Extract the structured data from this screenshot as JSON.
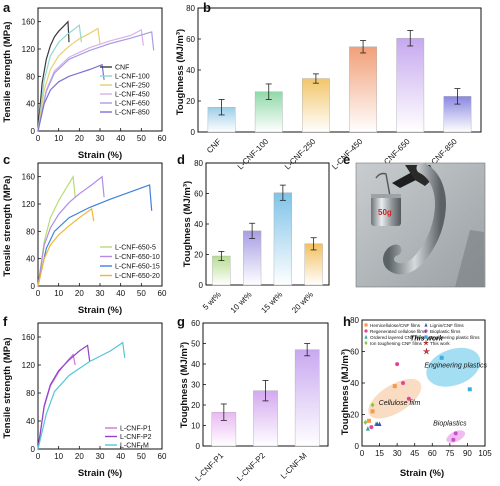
{
  "colors": {
    "pal6": [
      "#3a3a3a",
      "#8fd9d2",
      "#e8d070",
      "#d9b0e8",
      "#a79ee4",
      "#7c72d6"
    ],
    "d": [
      "#b6dd90",
      "#a79ee4",
      "#7fc3e8",
      "#f2c060"
    ],
    "f": [
      "#d873d8",
      "#8e44c9",
      "#55c6d6"
    ],
    "g": [
      "#e8b8f2",
      "#d4a8f0",
      "#c8a8f0"
    ],
    "h_cell": "#f5c090",
    "h_eng": "#58c3e8",
    "h_bio": "#e88ee8",
    "h_star": "#e23b3b"
  },
  "panels": {
    "a": {
      "letter": "a",
      "legend": [
        "CNF",
        "L-CNF-100",
        "L-CNF-250",
        "L-CNF-450",
        "L-CNF-650",
        "L-CNF-850"
      ]
    },
    "e": {
      "letter": "e",
      "photo_text": "50g"
    },
    "h": {
      "letter": "h",
      "legend": [
        "Hemicellulose/CNF films",
        "Regenerated cellulose films",
        "Ordered layered CNF films",
        "Ion toughening CNF films",
        "Lignin/CNF films",
        "Bioplastic films",
        "Engineering plastic films",
        "This work"
      ],
      "region_labels": {
        "cellulose": "Cellulose film",
        "engineering": "Engineering plastics",
        "bio": "Bioplastics",
        "this_work": "This work"
      }
    }
  },
  "chart_data": [
    {
      "id": "a",
      "type": "line",
      "xlabel": "Strain (%)",
      "ylabel": "Tensile strength (MPa)",
      "xlim": [
        0,
        60
      ],
      "ylim": [
        0,
        180
      ],
      "xticks": [
        0,
        10,
        20,
        30,
        40,
        50,
        60
      ],
      "yticks": [
        0,
        40,
        80,
        120,
        160
      ],
      "grid": false,
      "legend_position": "bottom-right",
      "series": [
        {
          "name": "CNF",
          "x": [
            0,
            2,
            4,
            6,
            8,
            10,
            12,
            14.5,
            15
          ],
          "y": [
            0,
            70,
            105,
            125,
            138,
            146,
            152,
            160,
            130
          ]
        },
        {
          "name": "L-CNF-100",
          "x": [
            0,
            3,
            6,
            10,
            14,
            18,
            20,
            21
          ],
          "y": [
            0,
            75,
            110,
            130,
            141,
            150,
            155,
            130
          ]
        },
        {
          "name": "L-CNF-250",
          "x": [
            0,
            3,
            6,
            10,
            15,
            20,
            25,
            29,
            30
          ],
          "y": [
            0,
            60,
            90,
            110,
            124,
            135,
            143,
            150,
            128
          ]
        },
        {
          "name": "L-CNF-450",
          "x": [
            0,
            4,
            8,
            15,
            25,
            35,
            45,
            50,
            51
          ],
          "y": [
            0,
            60,
            88,
            108,
            122,
            132,
            140,
            148,
            125
          ]
        },
        {
          "name": "L-CNF-650",
          "x": [
            0,
            4,
            8,
            15,
            25,
            35,
            45,
            55,
            56
          ],
          "y": [
            0,
            58,
            85,
            105,
            118,
            128,
            136,
            145,
            118
          ]
        },
        {
          "name": "L-CNF-850",
          "x": [
            0,
            3,
            6,
            10,
            15,
            20,
            25,
            31,
            32
          ],
          "y": [
            0,
            40,
            60,
            72,
            80,
            85,
            90,
            97,
            75
          ]
        }
      ]
    },
    {
      "id": "b",
      "type": "bar",
      "ylabel": "Toughness (MJ/m³)",
      "categories": [
        "CNF",
        "L-CNF-100",
        "L-CNF-250",
        "L-CNF-450",
        "L-CNF-650",
        "L-CNF-850"
      ],
      "values": [
        16,
        26,
        34.5,
        55,
        60.5,
        23
      ],
      "errors": [
        5,
        5,
        3,
        4,
        5,
        5
      ],
      "ylim": [
        0,
        80
      ],
      "yticks": [
        0,
        20,
        40,
        60,
        80
      ],
      "grid": false
    },
    {
      "id": "c",
      "type": "line",
      "xlabel": "Strain (%)",
      "ylabel": "Tensile strength (MPa)",
      "xlim": [
        0,
        60
      ],
      "ylim": [
        0,
        180
      ],
      "xticks": [
        0,
        10,
        20,
        30,
        40,
        50,
        60
      ],
      "yticks": [
        0,
        40,
        80,
        120,
        160
      ],
      "grid": false,
      "legend_position": "bottom-right",
      "series": [
        {
          "name": "L-CNF-650-5",
          "x": [
            0,
            3,
            6,
            10,
            14,
            17,
            18
          ],
          "y": [
            0,
            65,
            100,
            125,
            145,
            160,
            130
          ]
        },
        {
          "name": "L-CNF-650-10",
          "x": [
            0,
            3,
            6,
            10,
            15,
            20,
            26,
            31,
            32
          ],
          "y": [
            0,
            60,
            85,
            105,
            122,
            135,
            148,
            160,
            130
          ]
        },
        {
          "name": "L-CNF-650-15",
          "x": [
            0,
            4,
            8,
            15,
            25,
            35,
            45,
            54,
            55
          ],
          "y": [
            0,
            55,
            80,
            100,
            115,
            127,
            138,
            148,
            110
          ]
        },
        {
          "name": "L-CNF-650-20",
          "x": [
            0,
            3,
            6,
            10,
            15,
            20,
            26,
            27
          ],
          "y": [
            0,
            40,
            60,
            75,
            88,
            100,
            113,
            95
          ]
        }
      ]
    },
    {
      "id": "d",
      "type": "bar",
      "ylabel": "Toughness (MJ/m³)",
      "categories": [
        "5 wt%",
        "10 wt%",
        "15 wt%",
        "20 wt%"
      ],
      "values": [
        19,
        35.5,
        60.5,
        27
      ],
      "errors": [
        3,
        5,
        5,
        4
      ],
      "ylim": [
        0,
        80
      ],
      "yticks": [
        0,
        20,
        40,
        60,
        80
      ],
      "grid": false
    },
    {
      "id": "f",
      "type": "line",
      "xlabel": "Strain (%)",
      "ylabel": "Tensile strength (MPa)",
      "xlim": [
        0,
        60
      ],
      "ylim": [
        0,
        180
      ],
      "xticks": [
        0,
        10,
        20,
        30,
        40,
        50,
        60
      ],
      "yticks": [
        0,
        40,
        80,
        120,
        160
      ],
      "grid": false,
      "legend_position": "bottom-right",
      "series": [
        {
          "name": "L-CNF-P1",
          "x": [
            0,
            3,
            6,
            10,
            14,
            17,
            18
          ],
          "y": [
            0,
            60,
            90,
            110,
            125,
            135,
            120
          ]
        },
        {
          "name": "L-CNF-P2",
          "x": [
            0,
            3,
            6,
            10,
            15,
            20,
            24,
            25
          ],
          "y": [
            0,
            62,
            92,
            112,
            127,
            140,
            148,
            125
          ]
        },
        {
          "name": "L-CNF-M",
          "x": [
            0,
            4,
            8,
            15,
            25,
            35,
            41,
            42
          ],
          "y": [
            0,
            50,
            82,
            105,
            125,
            140,
            152,
            130
          ]
        }
      ]
    },
    {
      "id": "g",
      "type": "bar",
      "ylabel": "Toughness (MJ/m³)",
      "categories": [
        "L-CNF-P1",
        "L-CNF-P2",
        "L-CNF-M"
      ],
      "values": [
        16.5,
        27,
        47
      ],
      "errors": [
        4,
        5,
        3
      ],
      "ylim": [
        0,
        60
      ],
      "yticks": [
        0,
        10,
        20,
        30,
        40,
        50,
        60
      ],
      "grid": false
    },
    {
      "id": "h",
      "type": "scatter",
      "xlabel": "Strain (%)",
      "ylabel": "Toughness (MJ/m³)",
      "xlim": [
        0,
        105
      ],
      "ylim": [
        0,
        80
      ],
      "xticks": [
        0,
        15,
        30,
        45,
        60,
        75,
        90,
        105
      ],
      "yticks": [
        0,
        20,
        40,
        60,
        80
      ],
      "grid": false,
      "legend_position": "top",
      "series": [
        {
          "name": "Hemicellulose/CNF films",
          "marker": "square",
          "color": "#f2994a",
          "x": [
            6,
            9,
            28
          ],
          "y": [
            16,
            22,
            38
          ]
        },
        {
          "name": "Regenerated cellulose films",
          "marker": "circle",
          "color": "#e0459b",
          "x": [
            8,
            30,
            35,
            40
          ],
          "y": [
            12,
            52,
            40,
            30
          ]
        },
        {
          "name": "Ordered layered CNF films",
          "marker": "triangle",
          "color": "#2aa69a",
          "x": [
            5,
            12
          ],
          "y": [
            11,
            14
          ]
        },
        {
          "name": "Ion toughening CNF films",
          "marker": "diamond",
          "color": "#8dc63f",
          "x": [
            3,
            9
          ],
          "y": [
            15,
            26
          ]
        },
        {
          "name": "Lignin/CNF films",
          "marker": "triangle",
          "color": "#3b55b3",
          "x": [
            13,
            15
          ],
          "y": [
            14,
            14
          ]
        },
        {
          "name": "Bioplastic films",
          "marker": "circle",
          "color": "#c453c9",
          "x": [
            78,
            80
          ],
          "y": [
            4,
            8
          ]
        },
        {
          "name": "Engineering plastic films",
          "marker": "square",
          "color": "#3aaee0",
          "x": [
            68,
            92
          ],
          "y": [
            56,
            36
          ]
        },
        {
          "name": "This work",
          "marker": "star",
          "color": "#e23b3b",
          "x": [
            55
          ],
          "y": [
            60
          ]
        }
      ]
    }
  ]
}
